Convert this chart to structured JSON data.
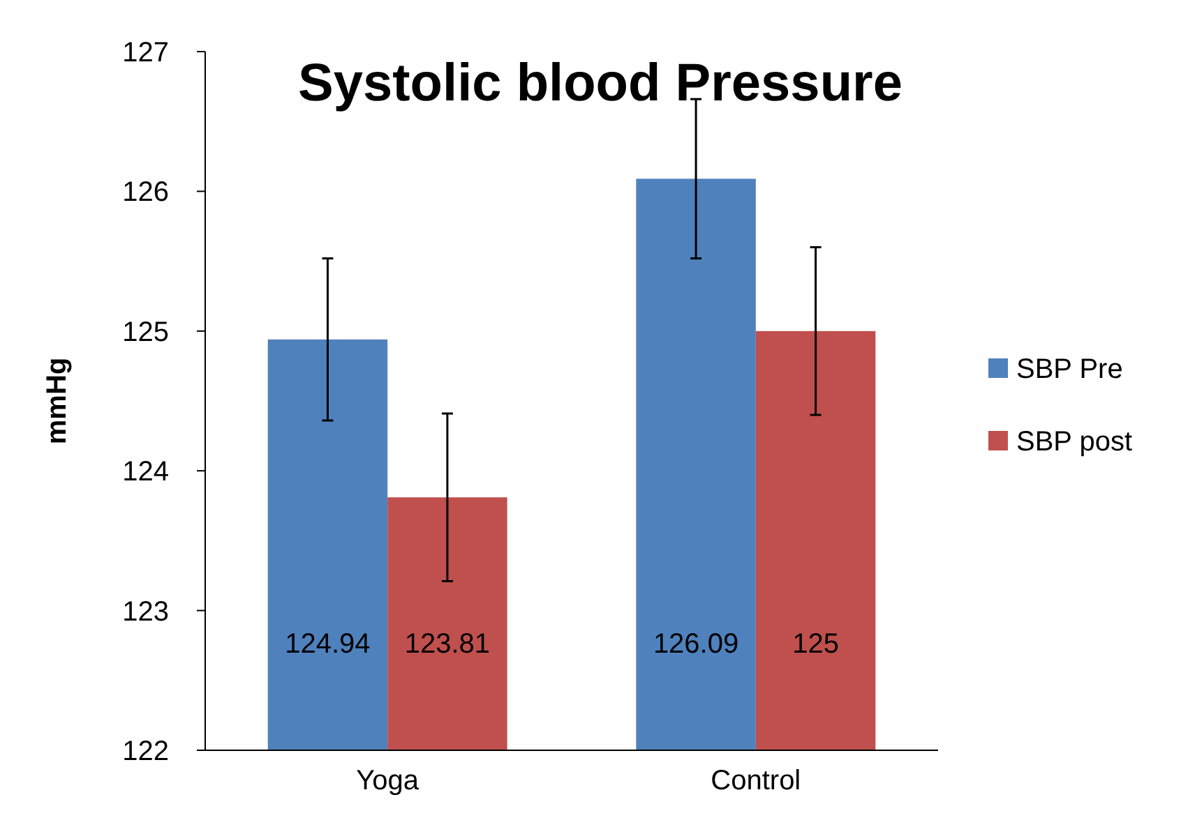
{
  "chart_data": {
    "type": "bar",
    "title": "Systolic blood Pressure",
    "ylabel": "mmHg",
    "categories": [
      "Yoga",
      "Control"
    ],
    "series": [
      {
        "name": "SBP Pre",
        "color": "#4f81bd",
        "values": [
          124.94,
          126.09
        ],
        "errors": [
          0.58,
          0.57
        ]
      },
      {
        "name": "SBP post",
        "color": "#c0504d",
        "values": [
          123.81,
          125
        ],
        "errors": [
          0.6,
          0.6
        ]
      }
    ],
    "ylim": [
      122,
      127
    ],
    "yticks": [
      122,
      123,
      124,
      125,
      126,
      127
    ],
    "grid": false,
    "legend": "right",
    "data_labels": true
  }
}
